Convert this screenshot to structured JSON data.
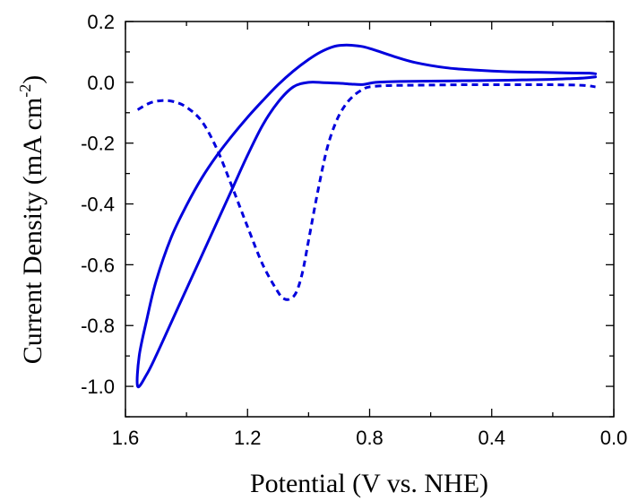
{
  "chart_data": {
    "type": "line",
    "title": "",
    "xlabel": "Potential (V vs. NHE)",
    "ylabel_main": "Current Density (mA cm",
    "ylabel_sup": "-2",
    "ylabel_tail": ")",
    "xlim": [
      1.6,
      0.0
    ],
    "ylim": [
      -1.1,
      0.2
    ],
    "x_reversed": true,
    "x_ticks": [
      1.6,
      1.2,
      0.8,
      0.4,
      0.0
    ],
    "x_tick_labels": [
      "1.6",
      "1.2",
      "0.8",
      "0.4",
      "0.0"
    ],
    "y_ticks": [
      0.2,
      0.0,
      -0.2,
      -0.4,
      -0.6,
      -0.8,
      -1.0
    ],
    "y_tick_labels": [
      "0.2",
      "0.0",
      "-0.2",
      "-0.4",
      "-0.6",
      "-0.8",
      "-1.0"
    ],
    "grid": false,
    "legend": "none",
    "series": [
      {
        "style": "solid",
        "color": "#0000dd",
        "x": [
          0.06,
          0.08,
          0.15,
          0.25,
          0.35,
          0.45,
          0.55,
          0.65,
          0.72,
          0.78,
          0.82,
          0.86,
          0.89,
          0.92,
          0.96,
          1.0,
          1.05,
          1.1,
          1.15,
          1.2,
          1.25,
          1.3,
          1.35,
          1.4,
          1.45,
          1.5,
          1.53,
          1.555,
          1.56,
          1.53,
          1.5,
          1.45,
          1.4,
          1.35,
          1.3,
          1.25,
          1.2,
          1.15,
          1.1,
          1.05,
          1.0,
          0.95,
          0.9,
          0.86,
          0.82,
          0.78,
          0.7,
          0.6,
          0.5,
          0.4,
          0.3,
          0.2,
          0.1,
          0.06
        ],
        "y": [
          0.028,
          0.03,
          0.031,
          0.033,
          0.035,
          0.04,
          0.048,
          0.065,
          0.085,
          0.105,
          0.117,
          0.122,
          0.122,
          0.117,
          0.1,
          0.075,
          0.037,
          -0.008,
          -0.06,
          -0.115,
          -0.175,
          -0.24,
          -0.315,
          -0.405,
          -0.51,
          -0.655,
          -0.78,
          -0.9,
          -1.0,
          -0.96,
          -0.9,
          -0.79,
          -0.68,
          -0.57,
          -0.46,
          -0.35,
          -0.24,
          -0.14,
          -0.065,
          -0.015,
          0.0,
          -0.001,
          -0.003,
          -0.006,
          -0.007,
          0.0,
          0.003,
          0.004,
          0.005,
          0.006,
          0.008,
          0.01,
          0.014,
          0.018
        ]
      },
      {
        "style": "dashed",
        "color": "#0000dd",
        "x": [
          1.56,
          1.52,
          1.48,
          1.44,
          1.4,
          1.35,
          1.3,
          1.25,
          1.2,
          1.15,
          1.1,
          1.08,
          1.06,
          1.04,
          1.02,
          1.0,
          0.97,
          0.94,
          0.91,
          0.88,
          0.85,
          0.82,
          0.8,
          0.75,
          0.7,
          0.6,
          0.5,
          0.4,
          0.3,
          0.2,
          0.1,
          0.06
        ],
        "y": [
          -0.09,
          -0.068,
          -0.06,
          -0.064,
          -0.082,
          -0.128,
          -0.22,
          -0.345,
          -0.475,
          -0.6,
          -0.69,
          -0.712,
          -0.712,
          -0.69,
          -0.625,
          -0.52,
          -0.36,
          -0.22,
          -0.13,
          -0.075,
          -0.042,
          -0.022,
          -0.015,
          -0.011,
          -0.01,
          -0.009,
          -0.008,
          -0.008,
          -0.008,
          -0.008,
          -0.01,
          -0.015
        ]
      }
    ]
  }
}
